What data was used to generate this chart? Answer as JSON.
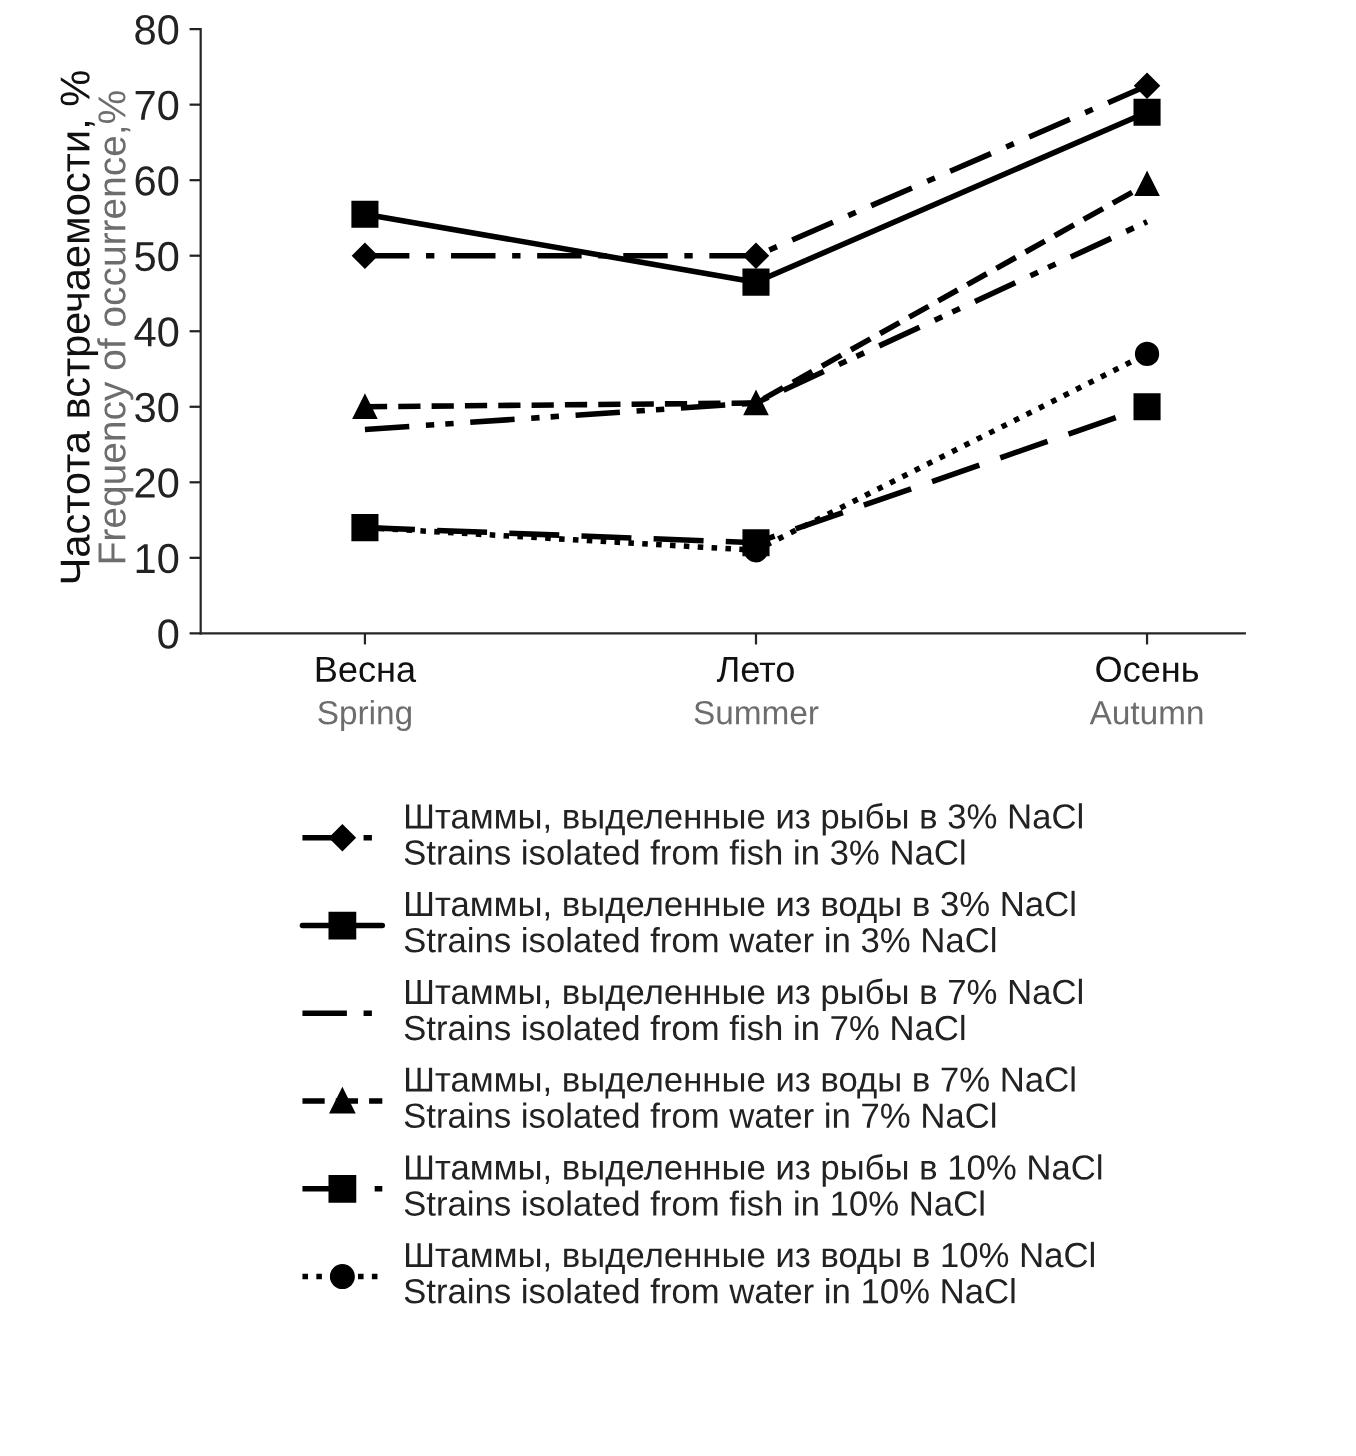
{
  "chart_data": {
    "type": "line",
    "ylabel": "Частота встречаемости, %\nFrequency of occurrence,%",
    "categories": [
      "Весна\nSpring",
      "Лето\nSummer",
      "Осень\nAutumn"
    ],
    "ylim": [
      0,
      80
    ],
    "yticks": [
      0,
      10,
      20,
      30,
      40,
      50,
      60,
      70,
      80
    ],
    "grid": false,
    "legend": "bottom",
    "series": [
      {
        "name": "Штаммы, выделенные из рыбы в 3% NaCl\nStrains isolated from fish in 3% NaCl",
        "color": "#000000",
        "marker": "diamond",
        "line_style": "dashdot",
        "values": [
          50,
          50,
          72.5
        ]
      },
      {
        "name": "Штаммы, выделенные из воды в 3% NaCl\nStrains isolated from water in 3% NaCl",
        "color": "#000000",
        "marker": "square",
        "line_style": "solid",
        "values": [
          55.5,
          46.5,
          69
        ]
      },
      {
        "name": "Штаммы, выделенные из рыбы в 7% NaCl\nStrains isolated from fish in 7% NaCl",
        "color": "#000000",
        "marker": "none",
        "line_style": "dashdotdot",
        "values": [
          27,
          30.5,
          54.5
        ]
      },
      {
        "name": "Штаммы, выделенные из воды в 7% NaCl\nStrains isolated from water in 7% NaCl",
        "color": "#000000",
        "marker": "triangle",
        "line_style": "dashed",
        "values": [
          30,
          30.5,
          59.5
        ]
      },
      {
        "name": "Штаммы, выделенные из рыбы в 10% NaCl\nStrains isolated from fish in 10% NaCl",
        "color": "#000000",
        "marker": "square",
        "line_style": "longdash",
        "values": [
          14,
          12,
          30
        ]
      },
      {
        "name": "Штаммы, выделенные из воды в 10% NaCl\nStrains isolated from water in 10% NaCl",
        "color": "#000000",
        "marker": "circle",
        "line_style": "dotted",
        "values": [
          14,
          11,
          37
        ]
      }
    ]
  }
}
